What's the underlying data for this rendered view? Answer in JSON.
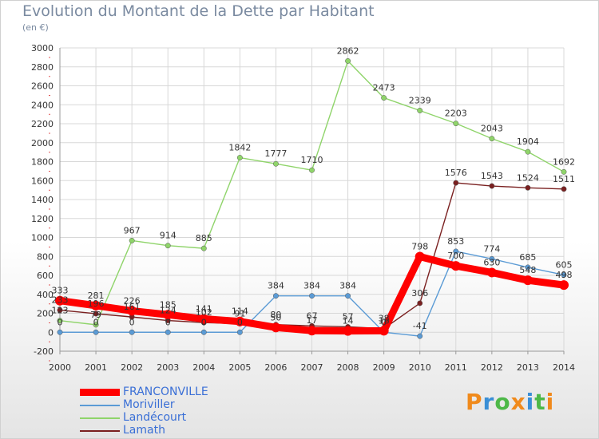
{
  "header": {
    "title": "Evolution du Montant de la Dette par Habitant",
    "unit": "(en €)"
  },
  "logo": {
    "text": "Proxiti",
    "colors": [
      "#f08a1c",
      "#3a8fd6",
      "#4db848",
      "#f08a1c",
      "#3a8fd6",
      "#4db848",
      "#f08a1c"
    ]
  },
  "chart_data": {
    "type": "line",
    "title": "Evolution du Montant de la Dette par Habitant",
    "ylabel": "(en €)",
    "xlabel": "",
    "ylim": [
      -200,
      3000
    ],
    "yticks": [
      -200,
      0,
      200,
      400,
      600,
      800,
      1000,
      1200,
      1400,
      1600,
      1800,
      2000,
      2200,
      2400,
      2600,
      2800,
      3000
    ],
    "x": [
      "2000",
      "2001",
      "2002",
      "2003",
      "2004",
      "2005",
      "2006",
      "2007",
      "2008",
      "2009",
      "2010",
      "2011",
      "2012",
      "2013",
      "2014"
    ],
    "grid": true,
    "legend_position": "bottom-left",
    "series": [
      {
        "name": "FRANCONVILLE",
        "color": "#ff0000",
        "values": [
          333,
          281,
          226,
          185,
          141,
          114,
          50,
          17,
          14,
          16,
          798,
          700,
          630,
          548,
          498
        ],
        "labels": [
          "333",
          "281",
          "226",
          "185",
          "141",
          "114",
          "50",
          "17",
          "14",
          "16",
          "798",
          "700",
          "630",
          "548",
          "498"
        ]
      },
      {
        "name": "Moriviller",
        "color": "#5b9bd5",
        "values": [
          0,
          0,
          0,
          0,
          0,
          0,
          384,
          384,
          384,
          0,
          -41,
          853,
          774,
          685,
          605
        ],
        "labels": [
          "0",
          "0",
          "0",
          "0",
          "0",
          "0",
          "384",
          "384",
          "384",
          "0",
          "-41",
          "853",
          "774",
          "685",
          "605"
        ]
      },
      {
        "name": "Landécourt",
        "color": "#8fd46a",
        "values": [
          123,
          79,
          967,
          914,
          885,
          1842,
          1777,
          1710,
          2862,
          2473,
          2339,
          2203,
          2043,
          1904,
          1692
        ],
        "labels": [
          "123",
          "79",
          "967",
          "914",
          "885",
          "1842",
          "1777",
          "1710",
          "2862",
          "2473",
          "2339",
          "2203",
          "2043",
          "1904",
          "1692"
        ]
      },
      {
        "name": "Lamath",
        "color": "#7a2020",
        "values": [
          233,
          196,
          161,
          124,
          102,
          91,
          80,
          67,
          57,
          38,
          306,
          1576,
          1543,
          1524,
          1511
        ],
        "labels": [
          "233",
          "196",
          "161",
          "124",
          "102",
          "91",
          "80",
          "67",
          "57",
          "38",
          "306",
          "1576",
          "1543",
          "1524",
          "1511"
        ]
      }
    ]
  }
}
